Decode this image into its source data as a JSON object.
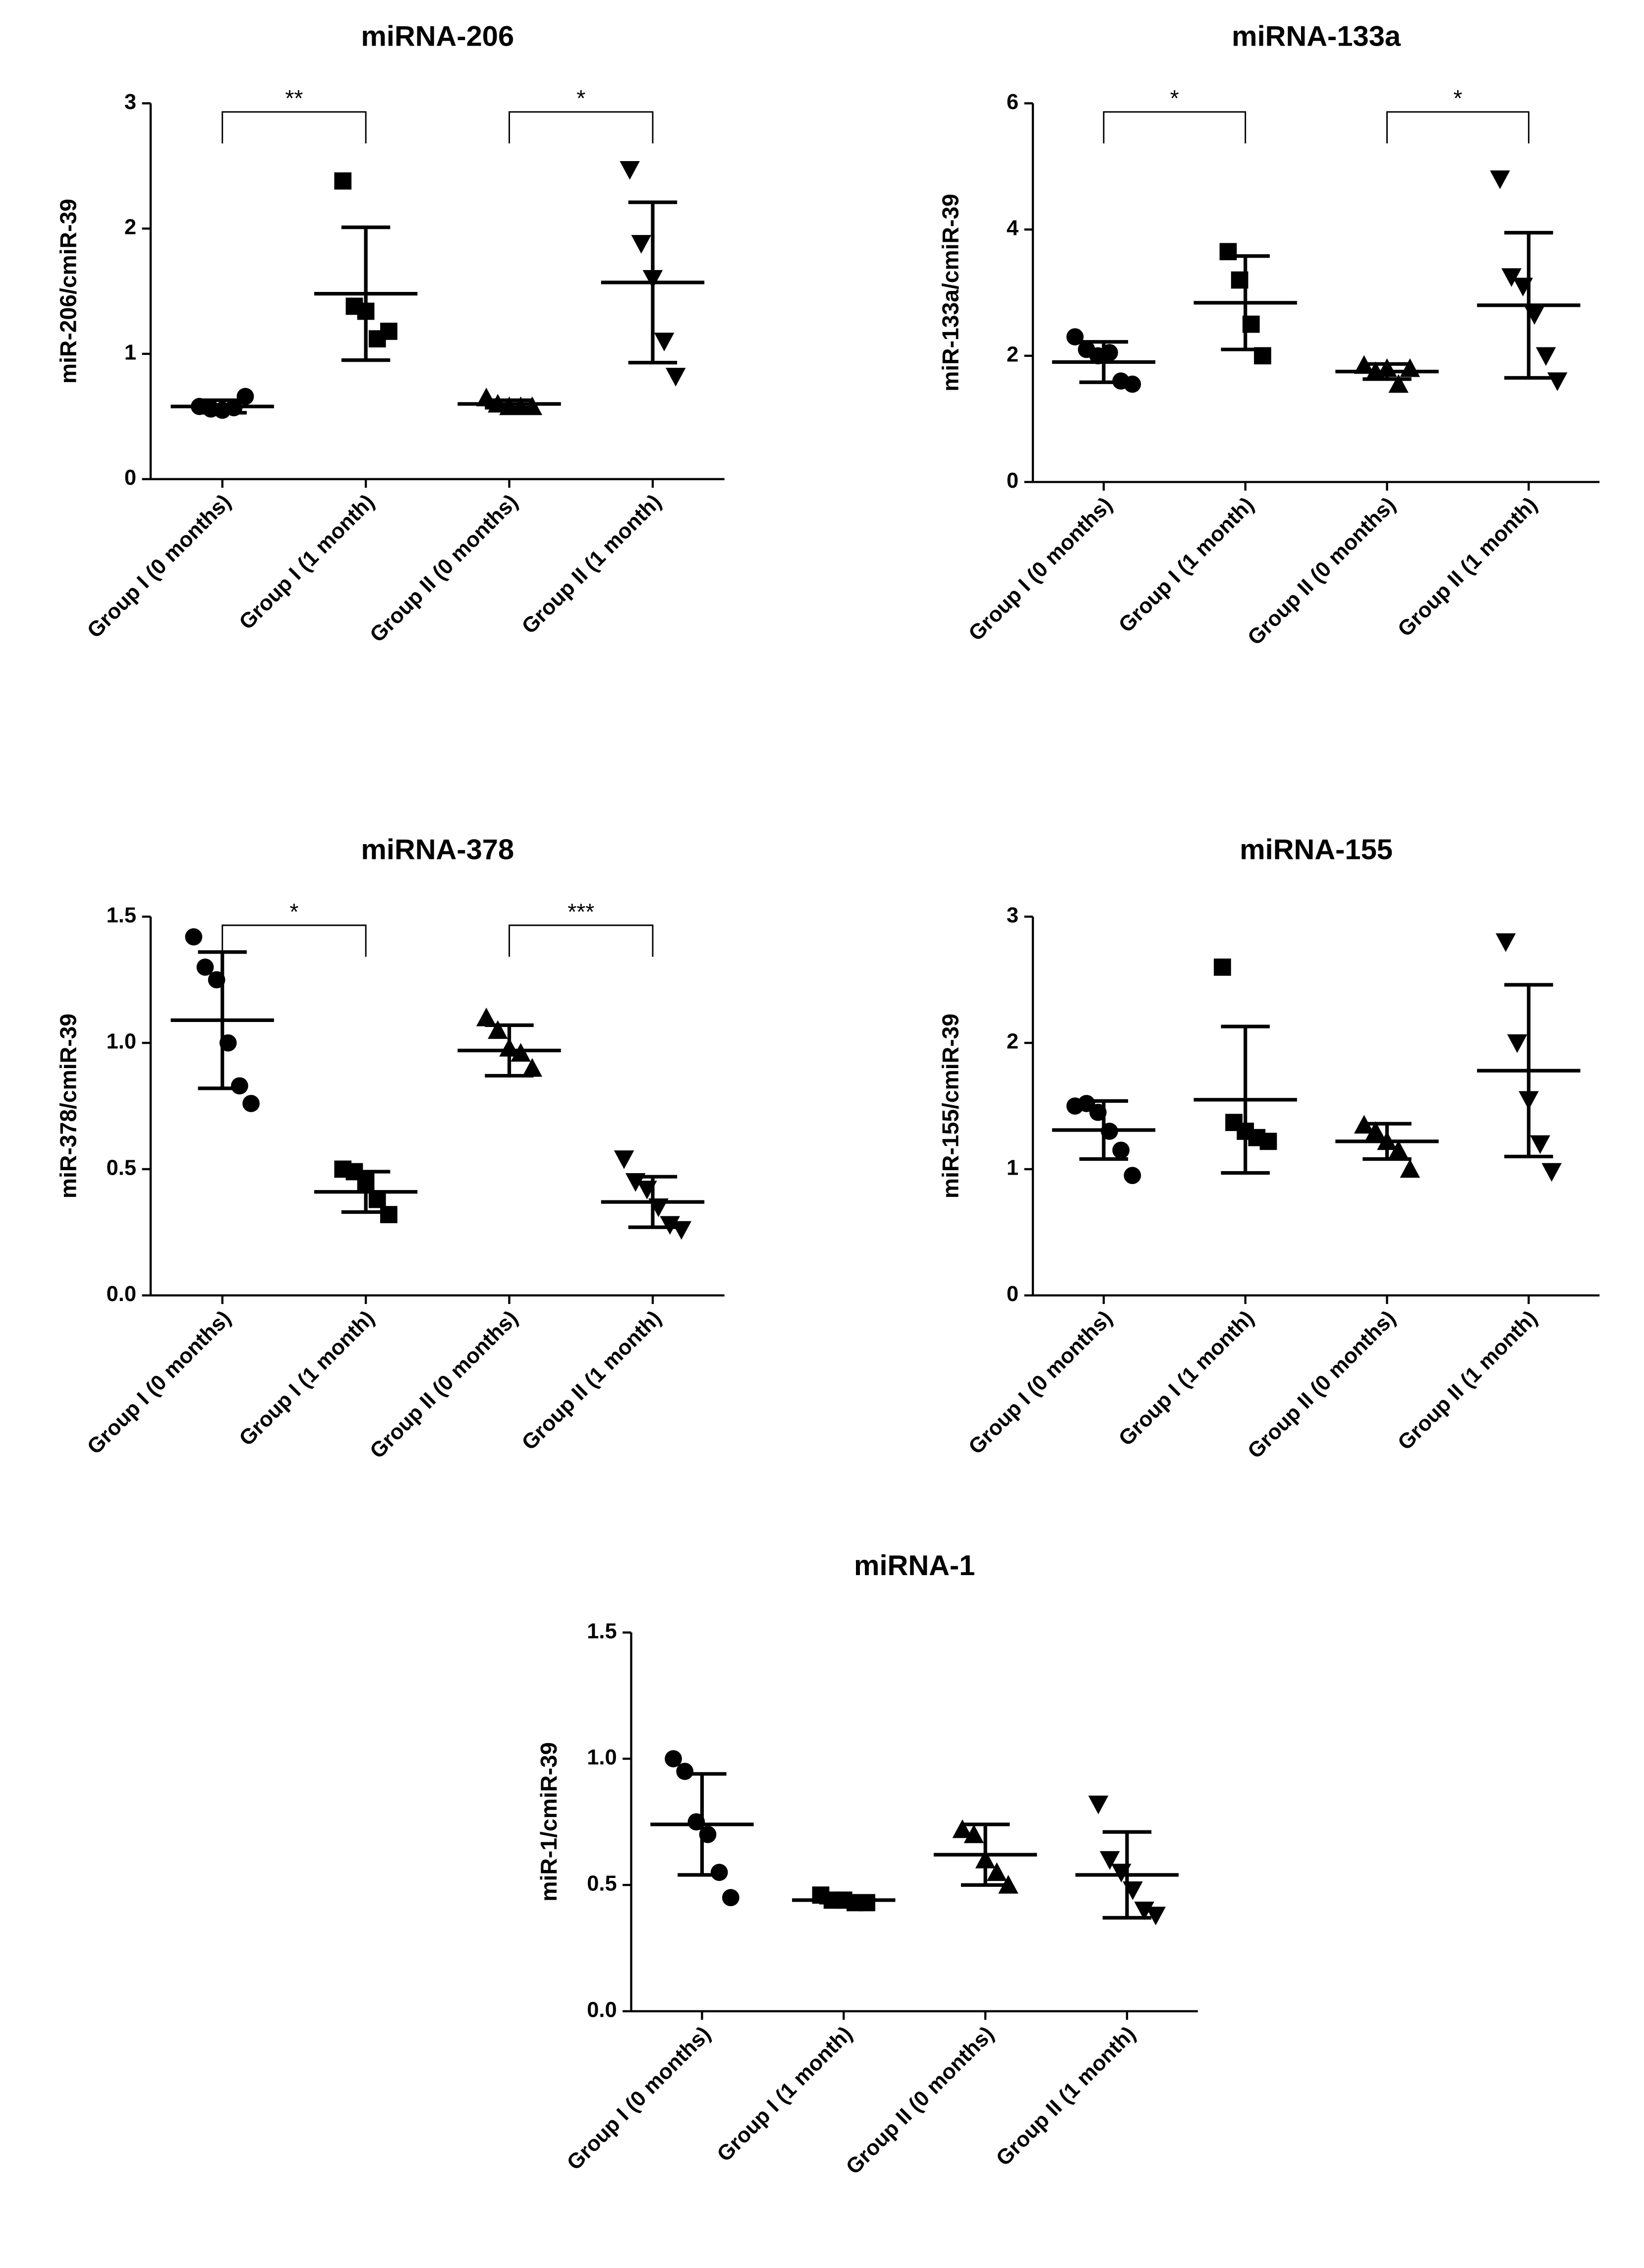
{
  "chart_data": [
    {
      "type": "scatter",
      "title": "miRNA-206",
      "y_label": "miR-206/cmiR-39",
      "categories": [
        "Group I (0 months)",
        "Group I (1 month)",
        "Group II (0 months)",
        "Group II (1 month)"
      ],
      "markers": [
        "circle",
        "square",
        "triangle",
        "triangle-down"
      ],
      "color": "#000000",
      "points": [
        [
          0.58,
          0.56,
          0.55,
          0.57,
          0.66
        ],
        [
          2.38,
          1.38,
          1.34,
          1.12,
          1.18
        ],
        [
          0.65,
          0.6,
          0.58,
          0.58,
          0.58
        ],
        [
          2.47,
          1.88,
          1.6,
          1.1,
          0.82
        ]
      ],
      "mean": [
        0.58,
        1.48,
        0.6,
        1.57
      ],
      "sd": [
        0.05,
        0.53,
        0.03,
        0.64
      ],
      "ylim": [
        0,
        3
      ],
      "yticks": [
        0,
        1,
        2,
        3
      ],
      "brackets": [
        {
          "label": "**",
          "groups": [
            "Group I (0 months)",
            "Group I (1 month)"
          ]
        },
        {
          "label": "*",
          "groups": [
            "Group II (0 months)",
            "Group II (1 month)"
          ]
        }
      ]
    },
    {
      "type": "scatter",
      "title": "miRNA-133a",
      "y_label": "miR-133a/cmiR-39",
      "categories": [
        "Group I (0 months)",
        "Group I (1 month)",
        "Group II (0 months)",
        "Group II (1 month)"
      ],
      "markers": [
        "circle",
        "square",
        "triangle",
        "triangle-down"
      ],
      "color": "#000000",
      "points": [
        [
          2.3,
          2.1,
          2.0,
          2.05,
          1.6,
          1.55
        ],
        [
          3.65,
          3.2,
          2.5,
          2.0
        ],
        [
          1.85,
          1.75,
          1.8,
          1.55,
          1.8
        ],
        [
          4.8,
          3.25,
          3.1,
          2.65,
          2.0,
          1.6
        ]
      ],
      "mean": [
        1.9,
        2.84,
        1.75,
        2.8
      ],
      "sd": [
        0.32,
        0.74,
        0.12,
        1.15
      ],
      "ylim": [
        0,
        6
      ],
      "yticks": [
        0,
        2,
        4,
        6
      ],
      "brackets": [
        {
          "label": "*",
          "groups": [
            "Group I (0 months)",
            "Group I (1 month)"
          ]
        },
        {
          "label": "*",
          "groups": [
            "Group II (0 months)",
            "Group II (1 month)"
          ]
        }
      ]
    },
    {
      "type": "scatter",
      "title": "miRNA-378",
      "y_label": "miR-378/cmiR-39",
      "categories": [
        "Group I (0 months)",
        "Group I (1 month)",
        "Group II (0 months)",
        "Group II (1 month)"
      ],
      "markers": [
        "circle",
        "square",
        "triangle",
        "triangle-down"
      ],
      "color": "#000000",
      "points": [
        [
          1.42,
          1.3,
          1.25,
          1.0,
          0.83,
          0.76
        ],
        [
          0.5,
          0.49,
          0.45,
          0.38,
          0.32
        ],
        [
          1.1,
          1.05,
          0.98,
          0.96,
          0.9
        ],
        [
          0.54,
          0.45,
          0.42,
          0.35,
          0.28,
          0.26
        ]
      ],
      "mean": [
        1.09,
        0.41,
        0.97,
        0.37
      ],
      "sd": [
        0.27,
        0.08,
        0.1,
        0.1
      ],
      "ylim": [
        0,
        1.5
      ],
      "yticks": [
        {
          "value": 0,
          "label": "0.0"
        },
        {
          "value": 0.5,
          "label": "0.5"
        },
        {
          "value": 1,
          "label": "1.0"
        },
        {
          "value": 1.5,
          "label": "1.5"
        }
      ],
      "brackets": [
        {
          "label": "*",
          "groups": [
            "Group I (0 months)",
            "Group I (1 month)"
          ]
        },
        {
          "label": "***",
          "groups": [
            "Group II (0 months)",
            "Group II (1 month)"
          ]
        }
      ]
    },
    {
      "type": "scatter",
      "title": "miRNA-155",
      "y_label": "miR-155/cmiR-39",
      "categories": [
        "Group I (0 months)",
        "Group I (1 month)",
        "Group II (0 months)",
        "Group II (1 month)"
      ],
      "markers": [
        "circle",
        "square",
        "triangle",
        "triangle-down"
      ],
      "color": "#000000",
      "points": [
        [
          1.5,
          1.52,
          1.45,
          1.3,
          1.15,
          0.95
        ],
        [
          2.6,
          1.37,
          1.3,
          1.25,
          1.22
        ],
        [
          1.35,
          1.3,
          1.22,
          1.15,
          1.0
        ],
        [
          2.8,
          2.0,
          1.55,
          1.2,
          0.98
        ]
      ],
      "mean": [
        1.31,
        1.55,
        1.22,
        1.78
      ],
      "sd": [
        0.23,
        0.58,
        0.14,
        0.68
      ],
      "ylim": [
        0,
        3
      ],
      "yticks": [
        0,
        1,
        2,
        3
      ]
    },
    {
      "type": "scatter",
      "title": "miRNA-1",
      "y_label": "miR-1/cmiR-39",
      "categories": [
        "Group I (0 months)",
        "Group I (1 month)",
        "Group II (0 months)",
        "Group II (1 month)"
      ],
      "markers": [
        "circle",
        "square",
        "triangle",
        "triangle-down"
      ],
      "color": "#000000",
      "points": [
        [
          1.0,
          0.95,
          0.75,
          0.7,
          0.55,
          0.45
        ],
        [
          0.46,
          0.44,
          0.44,
          0.43,
          0.43
        ],
        [
          0.72,
          0.7,
          0.6,
          0.55,
          0.5
        ],
        [
          0.82,
          0.6,
          0.55,
          0.48,
          0.4,
          0.38
        ]
      ],
      "mean": [
        0.74,
        0.44,
        0.62,
        0.54
      ],
      "sd": [
        0.2,
        0.01,
        0.12,
        0.17
      ],
      "ylim": [
        0,
        1.5
      ],
      "yticks": [
        {
          "value": 0,
          "label": "0.0"
        },
        {
          "value": 0.5,
          "label": "0.5"
        },
        {
          "value": 1,
          "label": "1.0"
        },
        {
          "value": 1.5,
          "label": "1.5"
        }
      ]
    }
  ]
}
